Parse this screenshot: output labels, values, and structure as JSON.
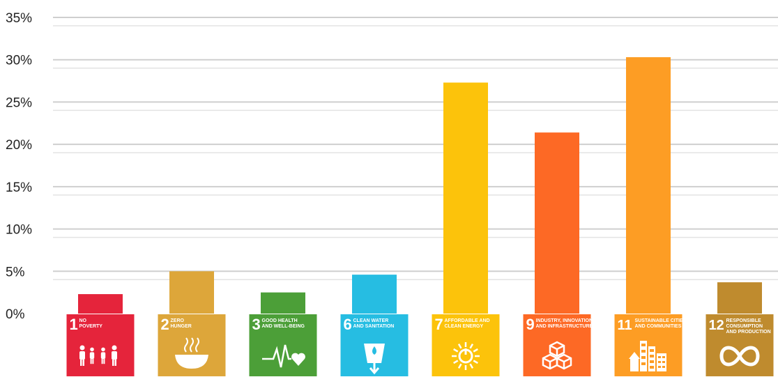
{
  "chart_data": {
    "type": "bar",
    "title": "",
    "xlabel": "",
    "ylabel": "",
    "ylim": [
      0,
      35
    ],
    "yticks": [
      {
        "value": 0,
        "label": "0%"
      },
      {
        "value": 5,
        "label": "5%"
      },
      {
        "value": 10,
        "label": "10%"
      },
      {
        "value": 15,
        "label": "15%"
      },
      {
        "value": 20,
        "label": "20%"
      },
      {
        "value": 25,
        "label": "25%"
      },
      {
        "value": 30,
        "label": "30%"
      },
      {
        "value": 35,
        "label": "35%"
      }
    ],
    "grid": true,
    "legend": "none",
    "categories": [
      {
        "number": "1",
        "title": [
          "NO",
          "POVERTY"
        ],
        "value": 2.3,
        "bar_color": "#E5243B",
        "tile_color": "#E5243B",
        "icon": "family-icon"
      },
      {
        "number": "2",
        "title": [
          "ZERO",
          "HUNGER"
        ],
        "value": 5.0,
        "bar_color": "#DDA63A",
        "tile_color": "#DDA63A",
        "icon": "bowl-icon"
      },
      {
        "number": "3",
        "title": [
          "GOOD HEALTH",
          "AND WELL-BEING"
        ],
        "value": 2.5,
        "bar_color": "#4C9F38",
        "tile_color": "#4C9F38",
        "icon": "heartbeat-icon"
      },
      {
        "number": "6",
        "title": [
          "CLEAN WATER",
          "AND SANITATION"
        ],
        "value": 4.6,
        "bar_color": "#26BDE2",
        "tile_color": "#26BDE2",
        "icon": "water-glass-icon"
      },
      {
        "number": "7",
        "title": [
          "AFFORDABLE AND",
          "CLEAN ENERGY"
        ],
        "value": 27.3,
        "bar_color": "#FCC30B",
        "tile_color": "#FCC30B",
        "icon": "sun-power-icon"
      },
      {
        "number": "9",
        "title": [
          "INDUSTRY, INNOVATION",
          "AND INFRASTRUCTURE"
        ],
        "value": 21.4,
        "bar_color": "#FD6925",
        "tile_color": "#FD6925",
        "icon": "cubes-icon"
      },
      {
        "number": "11",
        "title": [
          "SUSTAINABLE CITIES",
          "AND COMMUNITIES"
        ],
        "value": 30.3,
        "bar_color": "#FD9D24",
        "tile_color": "#FD9D24",
        "icon": "city-icon"
      },
      {
        "number": "12",
        "title": [
          "RESPONSIBLE",
          "CONSUMPTION",
          "AND PRODUCTION"
        ],
        "value": 3.7,
        "bar_color": "#BF8B2E",
        "tile_color": "#BF8B2E",
        "icon": "infinity-icon"
      }
    ]
  }
}
